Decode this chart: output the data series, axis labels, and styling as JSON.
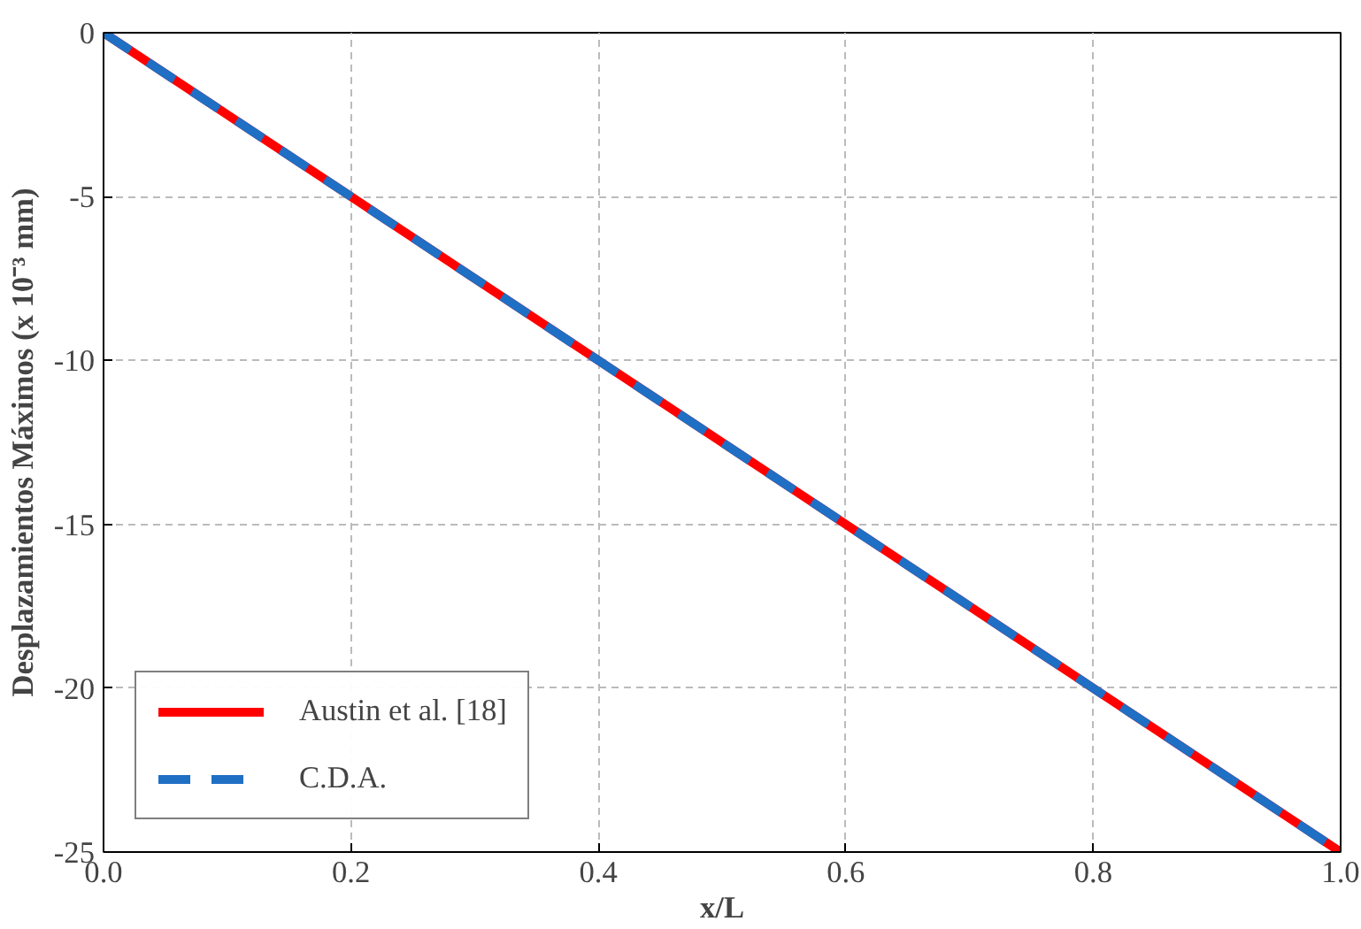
{
  "chart_data": {
    "type": "line",
    "xlabel": "x/L",
    "ylabel": "Desplazamientos Máximos (x 10⁻³ mm)",
    "x": [
      0,
      0.2,
      0.4,
      0.6,
      0.8,
      1.0
    ],
    "series": [
      {
        "name": "Austin et al. [18]",
        "color": "#ff0000",
        "line_style": "solid",
        "values": [
          0,
          -5,
          -10,
          -15,
          -20,
          -25
        ]
      },
      {
        "name": "C.D.A.",
        "color": "#1f6fc5",
        "line_style": "dashed",
        "values": [
          0,
          -5,
          -10,
          -15,
          -20,
          -25
        ]
      }
    ],
    "xlim": [
      0,
      1
    ],
    "ylim": [
      -25,
      0
    ],
    "xticks": [
      {
        "value": 0,
        "label": "0.0"
      },
      0.2,
      0.4,
      0.6,
      0.8,
      {
        "value": 1,
        "label": "1.0"
      }
    ],
    "yticks": [
      -25,
      -20,
      -15,
      -10,
      -5,
      0
    ],
    "grid": true,
    "legend": "bottom left",
    "marker": "none"
  }
}
